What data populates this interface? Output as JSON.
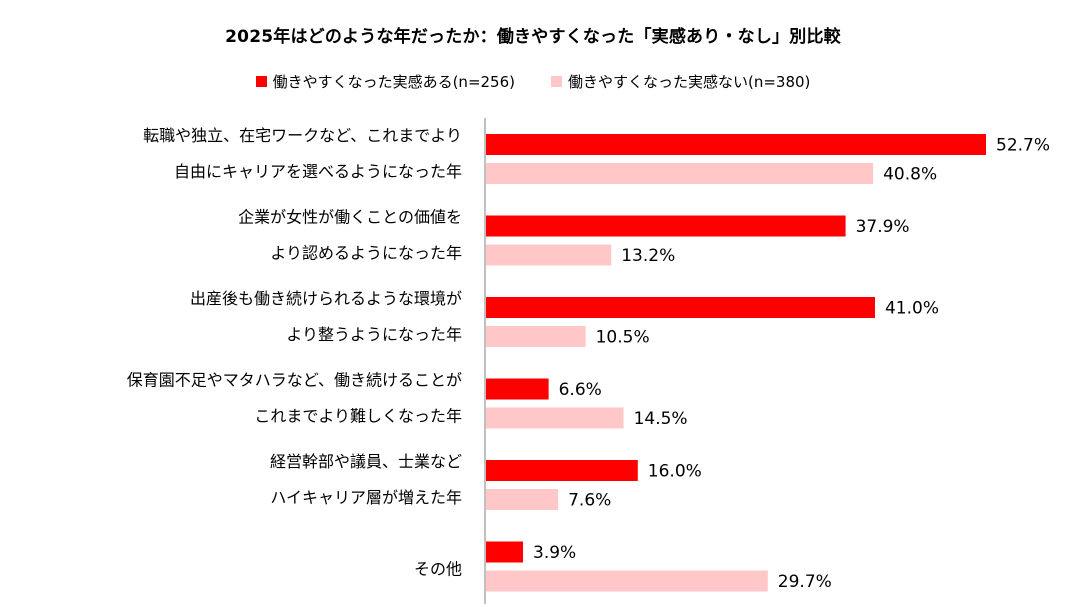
{
  "chart_data": {
    "type": "bar",
    "orientation": "horizontal",
    "title": "2025年はどのような年だったか：働きやすくなった「実感あり・なし」別比較",
    "categories": [
      [
        "転職や独立、在宅ワークなど、これまでより",
        "自由にキャリアを選べるようになった年"
      ],
      [
        "企業が女性が働くことの価値を",
        "より認めるようになった年"
      ],
      [
        "出産後も働き続けられるような環境が",
        "より整うようになった年"
      ],
      [
        "保育園不足やマタハラなど、働き続けることが",
        "これまでより難しくなった年"
      ],
      [
        "経営幹部や議員、士業など",
        "ハイキャリア層が増えた年"
      ],
      [
        "その他"
      ]
    ],
    "series": [
      {
        "name": "働きやすくなった実感ある(n=256)",
        "color": "#ff0000",
        "values": [
          52.7,
          37.9,
          41.0,
          6.6,
          16.0,
          3.9
        ],
        "labels": [
          "52.7%",
          "37.9%",
          "41.0%",
          "6.6%",
          "16.0%",
          "3.9%"
        ]
      },
      {
        "name": "働きやすくなった実感ない(n=380)",
        "color": "#ffc7c7",
        "values": [
          40.8,
          13.2,
          10.5,
          14.5,
          7.6,
          29.7
        ],
        "labels": [
          "40.8%",
          "13.2%",
          "10.5%",
          "14.5%",
          "7.6%",
          "29.7%"
        ]
      }
    ],
    "xlim": [
      0,
      55
    ],
    "unit": "%",
    "grid": false,
    "legend_position": "top-center"
  }
}
